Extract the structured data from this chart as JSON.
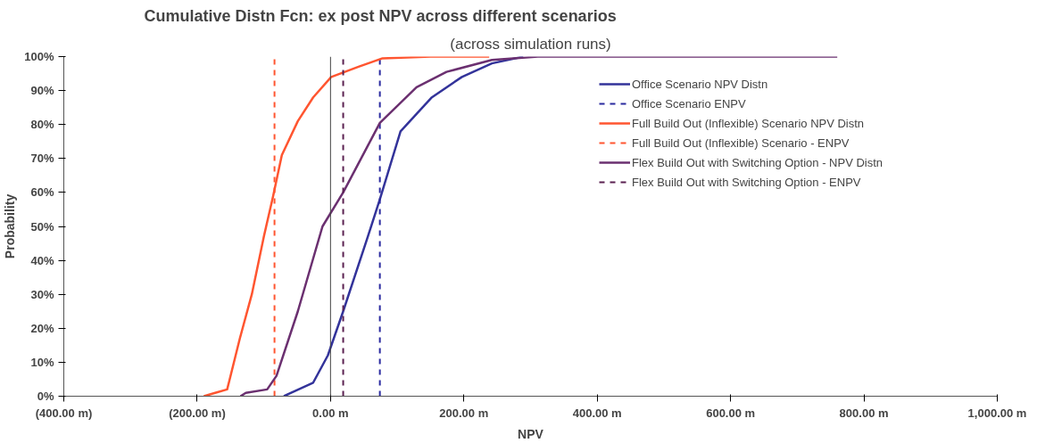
{
  "chart_data": {
    "type": "line",
    "title": "Cumulative Distn Fcn: ex post NPV  across different scenarios",
    "subtitle": "(across simulation runs)",
    "xlabel": "NPV",
    "ylabel": "Probability",
    "xlim": [
      -400,
      1000
    ],
    "ylim": [
      0,
      100
    ],
    "xticks": [
      {
        "value": -400,
        "label": "(400.00 m)"
      },
      {
        "value": -200,
        "label": "(200.00 m)"
      },
      {
        "value": 0,
        "label": "0.00 m"
      },
      {
        "value": 200,
        "label": "200.00 m"
      },
      {
        "value": 400,
        "label": "400.00 m"
      },
      {
        "value": 600,
        "label": "600.00 m"
      },
      {
        "value": 800,
        "label": "800.00 m"
      },
      {
        "value": 1000,
        "label": "1,000.00 m"
      }
    ],
    "yticks": [
      {
        "value": 0,
        "label": "0%"
      },
      {
        "value": 10,
        "label": "10%"
      },
      {
        "value": 20,
        "label": "20%"
      },
      {
        "value": 30,
        "label": "30%"
      },
      {
        "value": 40,
        "label": "40%"
      },
      {
        "value": 50,
        "label": "50%"
      },
      {
        "value": 60,
        "label": "60%"
      },
      {
        "value": 70,
        "label": "70%"
      },
      {
        "value": 80,
        "label": "80%"
      },
      {
        "value": 90,
        "label": "90%"
      },
      {
        "value": 100,
        "label": "100%"
      }
    ],
    "grid": false,
    "legend": "right",
    "marker": "none",
    "ref_lines": [
      {
        "axis": "x",
        "value": 0,
        "color": "#444444",
        "line_style": "solid"
      }
    ],
    "series": [
      {
        "name": "Office Scenario NPV Distn",
        "color": "#33339a",
        "line_style": "solid",
        "x": [
          -70,
          -59,
          -26,
          -4,
          19,
          56,
          74,
          105,
          152,
          197,
          242,
          289
        ],
        "values": [
          0,
          1,
          4,
          12,
          25,
          47,
          58,
          78,
          88,
          94,
          98,
          100
        ]
      },
      {
        "name": "Office Scenario ENPV",
        "color": "#2a2aa0",
        "line_style": "dashed",
        "x": [
          74,
          74
        ],
        "values": [
          0,
          100
        ]
      },
      {
        "name": "Full Build Out (Inflexible) Scenario NPV Distn",
        "color": "#ff5530",
        "line_style": "solid",
        "x": [
          -190,
          -173,
          -155,
          -136,
          -118,
          -100,
          -86,
          -73,
          -49,
          -26,
          1,
          42,
          78,
          150,
          238
        ],
        "values": [
          0,
          1,
          2,
          17,
          30,
          47,
          59,
          71,
          81,
          88,
          94,
          97,
          99.5,
          100,
          100
        ]
      },
      {
        "name": "Full Build Out (Inflexible) Scenario - ENPV",
        "color": "#ff5530",
        "line_style": "dashed",
        "x": [
          -84,
          -84
        ],
        "values": [
          0,
          100
        ]
      },
      {
        "name": "Flex Build Out with Switching Option - NPV Distn",
        "color": "#6b3070",
        "line_style": "solid",
        "x": [
          -135,
          -127,
          -95,
          -81,
          -49,
          -12,
          19,
          74,
          129,
          174,
          242,
          311,
          450,
          600,
          760
        ],
        "values": [
          0,
          1,
          2,
          6,
          25,
          50,
          60,
          80.5,
          91,
          95.5,
          99,
          100,
          100,
          100,
          100
        ]
      },
      {
        "name": "Flex Build Out with Switching Option - ENPV",
        "color": "#5a2050",
        "line_style": "dashed",
        "x": [
          19,
          19
        ],
        "values": [
          0,
          100
        ]
      }
    ]
  }
}
